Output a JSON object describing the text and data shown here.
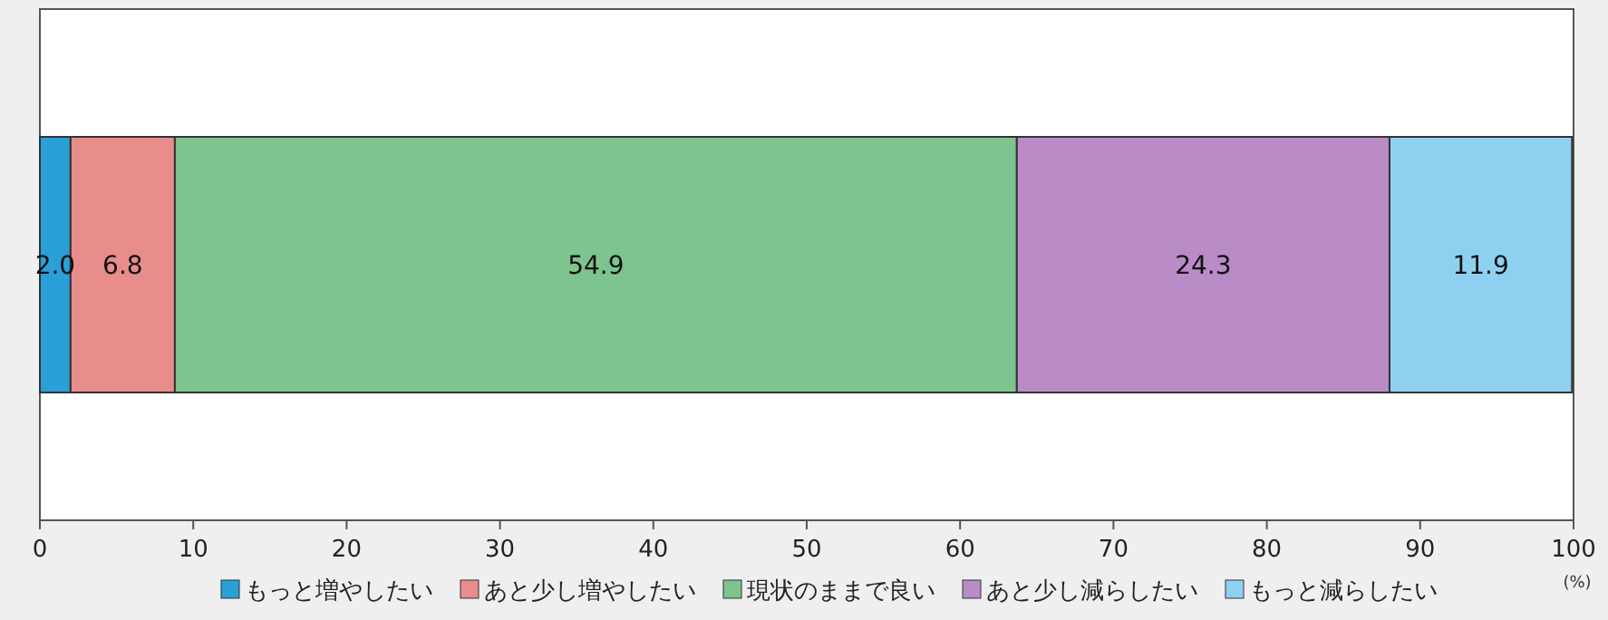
{
  "chart_data": {
    "type": "bar",
    "orientation": "horizontal",
    "stacked": true,
    "categories": [
      null
    ],
    "series": [
      {
        "name": "もっと増やしたい",
        "color": "#2a9fd8",
        "values": [
          2.0
        ],
        "value_labels": [
          "2.0"
        ]
      },
      {
        "name": "あと少し増やしたい",
        "color": "#e88c8c",
        "values": [
          6.8
        ],
        "value_labels": [
          "6.8"
        ]
      },
      {
        "name": "現状のままで良い",
        "color": "#7ec48f",
        "values": [
          54.9
        ],
        "value_labels": [
          "54.9"
        ]
      },
      {
        "name": "あと少し減らしたい",
        "color": "#b98cc8",
        "values": [
          24.3
        ],
        "value_labels": [
          "24.3"
        ]
      },
      {
        "name": "もっと減らしたい",
        "color": "#8fd0f0",
        "values": [
          11.9
        ],
        "value_labels": [
          "11.9"
        ]
      }
    ],
    "xlim": [
      0,
      100
    ],
    "xticks": [
      0,
      10,
      20,
      30,
      40,
      50,
      60,
      70,
      80,
      90,
      100
    ],
    "xlabel": "(%)",
    "legend": "bottom"
  }
}
